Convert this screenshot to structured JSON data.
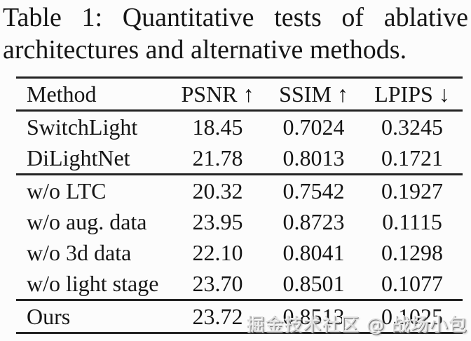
{
  "caption": {
    "line1": "Table 1: Quantitative tests of ablative",
    "line2": "architectures and alternative methods."
  },
  "table": {
    "columns": [
      "Method",
      "PSNR ↑",
      "SSIM ↑",
      "LPIPS ↓"
    ],
    "groups": [
      {
        "rows": [
          [
            "SwitchLight",
            "18.45",
            "0.7024",
            "0.3245"
          ],
          [
            "DiLightNet",
            "21.78",
            "0.8013",
            "0.1721"
          ]
        ]
      },
      {
        "rows": [
          [
            "w/o LTC",
            "20.32",
            "0.7542",
            "0.1927"
          ],
          [
            "w/o aug. data",
            "23.95",
            "0.8723",
            "0.1115"
          ],
          [
            "w/o 3d data",
            "22.10",
            "0.8041",
            "0.1298"
          ],
          [
            "w/o light stage",
            "23.70",
            "0.8501",
            "0.1077"
          ]
        ]
      },
      {
        "rows": [
          [
            "Ours",
            "23.72",
            "0.8513",
            "0.1025"
          ]
        ]
      }
    ]
  },
  "watermark": {
    "text": "掘金技术社区 @ 战场小包"
  }
}
